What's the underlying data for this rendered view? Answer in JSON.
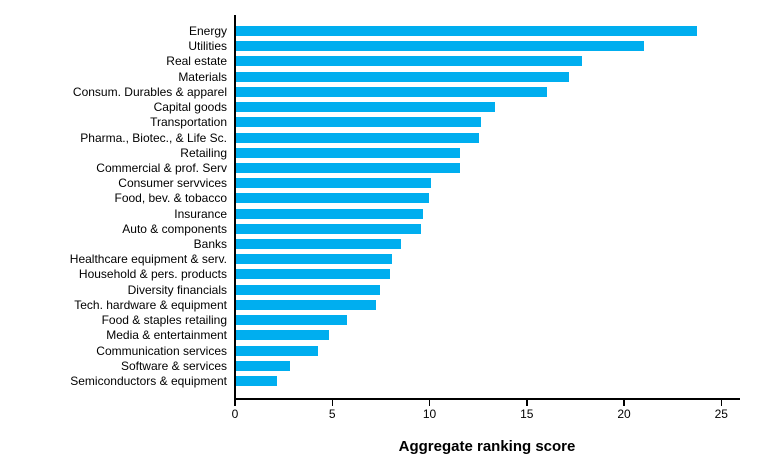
{
  "chart_data": {
    "type": "bar",
    "orientation": "horizontal",
    "title": "",
    "xlabel": "Aggregate ranking score",
    "ylabel": "",
    "xlim": [
      0,
      26
    ],
    "xticks": [
      0,
      5,
      10,
      15,
      20,
      25
    ],
    "grid": false,
    "legend": false,
    "bar_color": "#00AEEF",
    "axis_color": "#000000",
    "categories": [
      "Energy",
      "Utilities",
      "Real estate",
      "Materials",
      "Consum. Durables & apparel",
      "Capital goods",
      "Transportation",
      "Pharma., Biotec., & Life Sc.",
      "Retailing",
      "Commercial & prof. Serv",
      "Consumer servvices",
      "Food, bev. & tobacco",
      "Insurance",
      "Auto & components",
      "Banks",
      "Healthcare equipment & serv.",
      "Household & pers. products",
      "Diversity financials",
      "Tech. hardware & equipment",
      "Food & staples retailing",
      "Media & entertainment",
      "Communication services",
      "Software & services",
      "Semiconductors & equipment"
    ],
    "values": [
      23.7,
      21.0,
      17.8,
      17.1,
      16.0,
      13.3,
      12.6,
      12.5,
      11.5,
      11.5,
      10.0,
      9.9,
      9.6,
      9.5,
      8.5,
      8.0,
      7.9,
      7.4,
      7.2,
      5.7,
      4.8,
      4.2,
      2.8,
      2.1
    ]
  }
}
